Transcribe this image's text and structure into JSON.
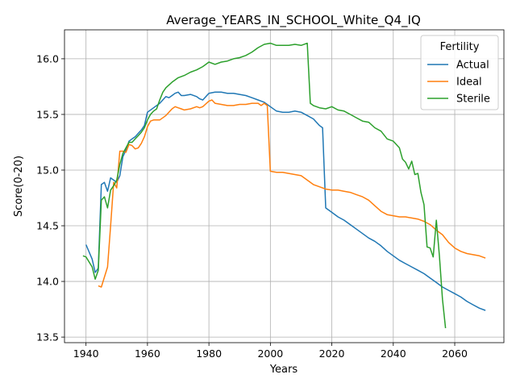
{
  "chart_data": {
    "type": "line",
    "title": "Average_YEARS_IN_SCHOOL_White_Q4_IQ",
    "xlabel": "Years",
    "ylabel": "Score(0-20)",
    "xlim": [
      1933,
      2076
    ],
    "ylim": [
      13.45,
      16.26
    ],
    "xticks": [
      1940,
      1960,
      1980,
      2000,
      2020,
      2040,
      2060
    ],
    "yticks": [
      13.5,
      14.0,
      14.5,
      15.0,
      15.5,
      16.0
    ],
    "grid": true,
    "legend": {
      "title": "Fertility",
      "placement": "top-right"
    },
    "series": [
      {
        "name": "Actual",
        "color": "#1f77b4",
        "x": [
          1940,
          1942,
          1943,
          1944,
          1945,
          1946,
          1947,
          1948,
          1949,
          1950,
          1951,
          1952,
          1953,
          1954,
          1955,
          1956,
          1957,
          1958,
          1959,
          1960,
          1962,
          1964,
          1966,
          1967,
          1968,
          1969,
          1970,
          1971,
          1972,
          1974,
          1976,
          1977,
          1978,
          1980,
          1982,
          1984,
          1986,
          1988,
          1990,
          1992,
          1994,
          1996,
          1998,
          2000,
          2002,
          2004,
          2006,
          2008,
          2010,
          2012,
          2014,
          2016,
          2017,
          2018,
          2020,
          2022,
          2024,
          2026,
          2028,
          2030,
          2032,
          2034,
          2036,
          2038,
          2040,
          2042,
          2044,
          2046,
          2048,
          2050,
          2052,
          2054,
          2056,
          2058,
          2060,
          2062,
          2064,
          2066,
          2068,
          2070
        ],
        "values": [
          14.33,
          14.2,
          14.08,
          14.12,
          14.87,
          14.89,
          14.81,
          14.93,
          14.91,
          14.89,
          14.95,
          15.12,
          15.18,
          15.26,
          15.28,
          15.3,
          15.33,
          15.36,
          15.4,
          15.52,
          15.56,
          15.6,
          15.66,
          15.65,
          15.67,
          15.69,
          15.7,
          15.67,
          15.67,
          15.68,
          15.66,
          15.64,
          15.63,
          15.69,
          15.7,
          15.7,
          15.69,
          15.69,
          15.68,
          15.67,
          15.65,
          15.63,
          15.61,
          15.57,
          15.53,
          15.52,
          15.52,
          15.53,
          15.52,
          15.49,
          15.46,
          15.4,
          15.38,
          14.66,
          14.62,
          14.58,
          14.55,
          14.51,
          14.47,
          14.43,
          14.39,
          14.36,
          14.32,
          14.27,
          14.23,
          14.19,
          14.16,
          14.13,
          14.1,
          14.07,
          14.03,
          13.99,
          13.95,
          13.92,
          13.89,
          13.86,
          13.82,
          13.79,
          13.76,
          13.74
        ]
      },
      {
        "name": "Ideal",
        "color": "#ff7f0e",
        "x": [
          1944,
          1945,
          1947,
          1948,
          1949,
          1950,
          1951,
          1952,
          1953,
          1954,
          1955,
          1956,
          1957,
          1958,
          1959,
          1960,
          1961,
          1962,
          1964,
          1966,
          1968,
          1969,
          1970,
          1971,
          1972,
          1974,
          1976,
          1977,
          1978,
          1980,
          1981,
          1982,
          1984,
          1986,
          1988,
          1990,
          1992,
          1994,
          1996,
          1997,
          1998,
          1999,
          2000,
          2002,
          2004,
          2006,
          2008,
          2010,
          2012,
          2014,
          2016,
          2018,
          2020,
          2022,
          2024,
          2026,
          2028,
          2030,
          2032,
          2034,
          2036,
          2038,
          2040,
          2042,
          2044,
          2046,
          2048,
          2050,
          2052,
          2054,
          2056,
          2058,
          2060,
          2062,
          2064,
          2066,
          2068,
          2070
        ],
        "values": [
          13.96,
          13.95,
          14.13,
          14.5,
          14.89,
          14.84,
          15.17,
          15.17,
          15.16,
          15.23,
          15.22,
          15.19,
          15.2,
          15.24,
          15.3,
          15.39,
          15.44,
          15.45,
          15.45,
          15.49,
          15.55,
          15.57,
          15.56,
          15.55,
          15.54,
          15.55,
          15.57,
          15.56,
          15.57,
          15.62,
          15.63,
          15.6,
          15.59,
          15.58,
          15.58,
          15.59,
          15.59,
          15.6,
          15.6,
          15.58,
          15.6,
          15.58,
          14.99,
          14.98,
          14.98,
          14.97,
          14.96,
          14.95,
          14.91,
          14.87,
          14.85,
          14.83,
          14.82,
          14.82,
          14.81,
          14.8,
          14.78,
          14.76,
          14.73,
          14.68,
          14.63,
          14.6,
          14.59,
          14.58,
          14.58,
          14.57,
          14.56,
          14.54,
          14.51,
          14.46,
          14.42,
          14.35,
          14.3,
          14.27,
          14.25,
          14.24,
          14.23,
          14.21
        ]
      },
      {
        "name": "Sterile",
        "color": "#2ca02c",
        "x": [
          1939,
          1940,
          1942,
          1943,
          1944,
          1945,
          1946,
          1947,
          1948,
          1949,
          1950,
          1951,
          1952,
          1953,
          1954,
          1955,
          1956,
          1957,
          1958,
          1959,
          1960,
          1961,
          1962,
          1963,
          1964,
          1965,
          1966,
          1968,
          1970,
          1972,
          1974,
          1976,
          1978,
          1980,
          1982,
          1984,
          1986,
          1988,
          1990,
          1992,
          1994,
          1996,
          1998,
          2000,
          2002,
          2004,
          2006,
          2008,
          2010,
          2012,
          2013,
          2014,
          2016,
          2018,
          2020,
          2022,
          2024,
          2026,
          2028,
          2030,
          2032,
          2034,
          2036,
          2038,
          2040,
          2042,
          2043,
          2044,
          2045,
          2046,
          2047,
          2048,
          2049,
          2050,
          2051,
          2052,
          2053,
          2054,
          2055,
          2056,
          2057
        ],
        "values": [
          14.23,
          14.22,
          14.13,
          14.02,
          14.1,
          14.73,
          14.76,
          14.66,
          14.82,
          14.86,
          14.91,
          15.05,
          15.15,
          15.2,
          15.25,
          15.25,
          15.28,
          15.31,
          15.34,
          15.38,
          15.45,
          15.5,
          15.53,
          15.55,
          15.63,
          15.7,
          15.74,
          15.79,
          15.83,
          15.85,
          15.88,
          15.9,
          15.93,
          15.97,
          15.95,
          15.97,
          15.98,
          16.0,
          16.01,
          16.03,
          16.06,
          16.1,
          16.13,
          16.14,
          16.12,
          16.12,
          16.12,
          16.13,
          16.12,
          16.14,
          15.6,
          15.58,
          15.56,
          15.55,
          15.57,
          15.54,
          15.53,
          15.5,
          15.47,
          15.44,
          15.43,
          15.38,
          15.35,
          15.28,
          15.26,
          15.2,
          15.1,
          15.07,
          15.01,
          15.08,
          14.96,
          14.97,
          14.8,
          14.69,
          14.31,
          14.3,
          14.22,
          14.55,
          14.23,
          13.84,
          13.58
        ]
      }
    ]
  }
}
